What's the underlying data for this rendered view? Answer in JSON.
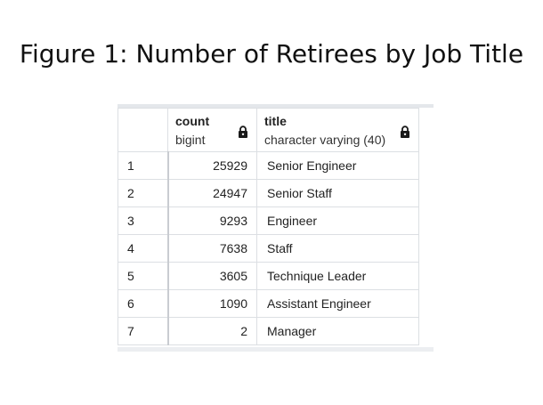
{
  "figure": {
    "title": "Figure 1: Number of Retirees by Job Title"
  },
  "grid": {
    "columns": [
      {
        "name": "count",
        "type": "bigint",
        "locked_icon": "lock-icon"
      },
      {
        "name": "title",
        "type": "character varying (40)",
        "locked_icon": "lock-icon"
      }
    ],
    "rows": [
      {
        "num": "1",
        "count": "25929",
        "title": "Senior Engineer"
      },
      {
        "num": "2",
        "count": "24947",
        "title": "Senior Staff"
      },
      {
        "num": "3",
        "count": "9293",
        "title": "Engineer"
      },
      {
        "num": "4",
        "count": "7638",
        "title": "Staff"
      },
      {
        "num": "5",
        "count": "3605",
        "title": "Technique Leader"
      },
      {
        "num": "6",
        "count": "1090",
        "title": "Assistant Engineer"
      },
      {
        "num": "7",
        "count": "2",
        "title": "Manager"
      }
    ]
  },
  "colors": {
    "border": "#dcdfe3",
    "text": "#222222",
    "icon": "#1a1a1a"
  }
}
